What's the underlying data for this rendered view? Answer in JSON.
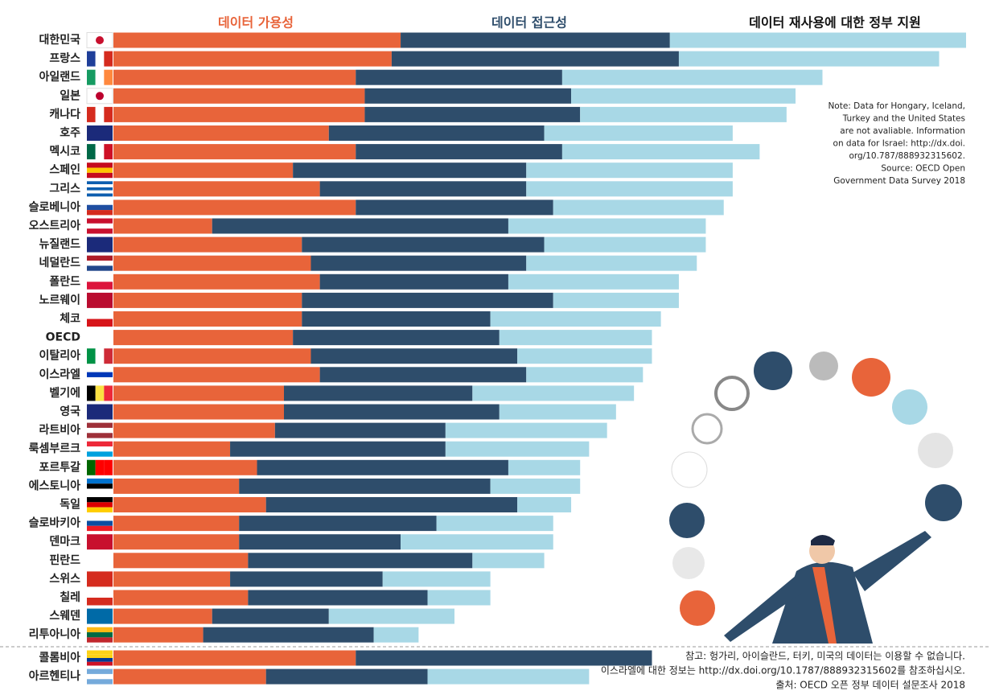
{
  "chart_data": {
    "type": "stacked-bar-horizontal",
    "categories": [
      "대한민국",
      "프랑스",
      "아일랜드",
      "일본",
      "캐나다",
      "호주",
      "멕시코",
      "스페인",
      "그리스",
      "슬로베니아",
      "오스트리아",
      "뉴질랜드",
      "네덜란드",
      "폴란드",
      "노르웨이",
      "체코",
      "OECD",
      "이탈리아",
      "이스라엘",
      "벨기에",
      "영국",
      "라트비아",
      "룩셈부르크",
      "포르투갈",
      "에스토니아",
      "독일",
      "슬로바키아",
      "덴마크",
      "핀란드",
      "스위스",
      "칠레",
      "스웨덴",
      "리투아니아",
      "콜롬비아",
      "아르헨티나"
    ],
    "series": [
      {
        "name": "데이터 가용성",
        "color": "#e8643a",
        "values": [
          0.32,
          0.31,
          0.27,
          0.28,
          0.28,
          0.24,
          0.27,
          0.2,
          0.23,
          0.27,
          0.11,
          0.21,
          0.22,
          0.23,
          0.21,
          0.21,
          0.2,
          0.22,
          0.23,
          0.19,
          0.19,
          0.18,
          0.13,
          0.16,
          0.14,
          0.17,
          0.14,
          0.14,
          0.15,
          0.13,
          0.15,
          0.11,
          0.1,
          0.27,
          0.17
        ]
      },
      {
        "name": "데이터 접근성",
        "color": "#2e4d6b",
        "values": [
          0.3,
          0.32,
          0.23,
          0.23,
          0.24,
          0.24,
          0.23,
          0.26,
          0.23,
          0.22,
          0.33,
          0.27,
          0.24,
          0.21,
          0.28,
          0.21,
          0.23,
          0.23,
          0.23,
          0.21,
          0.24,
          0.19,
          0.24,
          0.28,
          0.28,
          0.28,
          0.22,
          0.18,
          0.25,
          0.17,
          0.2,
          0.13,
          0.19,
          0.33,
          0.18
        ]
      },
      {
        "name": "데이터 재사용에 대한 정부 지원",
        "color": "#a8d8e6",
        "values": [
          0.33,
          0.29,
          0.29,
          0.25,
          0.23,
          0.21,
          0.22,
          0.23,
          0.23,
          0.19,
          0.22,
          0.18,
          0.19,
          0.19,
          0.14,
          0.19,
          0.17,
          0.15,
          0.13,
          0.18,
          0.13,
          0.18,
          0.16,
          0.08,
          0.1,
          0.06,
          0.13,
          0.17,
          0.08,
          0.12,
          0.07,
          0.14,
          0.05,
          0,
          0.18
        ]
      }
    ],
    "xlim": [
      0,
      0.95
    ],
    "note": [
      "Note: Data for Hongary, Iceland,",
      "Turkey and the United States",
      "are not avaliable. Information",
      "on data for Israel: http://dx.doi.",
      "org/10.787/888932315602.",
      "Source: OECD Open",
      "Government Data Survey 2018"
    ],
    "footnote": [
      "참고: 헝가리, 아이슬란드, 터키, 미국의 데이터는 이용할 수 없습니다.",
      "이스라엘에 대한 정보는 http://dx.doi.org/10.1787/888932315602를 참조하십시오.",
      "출처: OECD 오픈 정부 데이터 설문조사 2018"
    ]
  }
}
